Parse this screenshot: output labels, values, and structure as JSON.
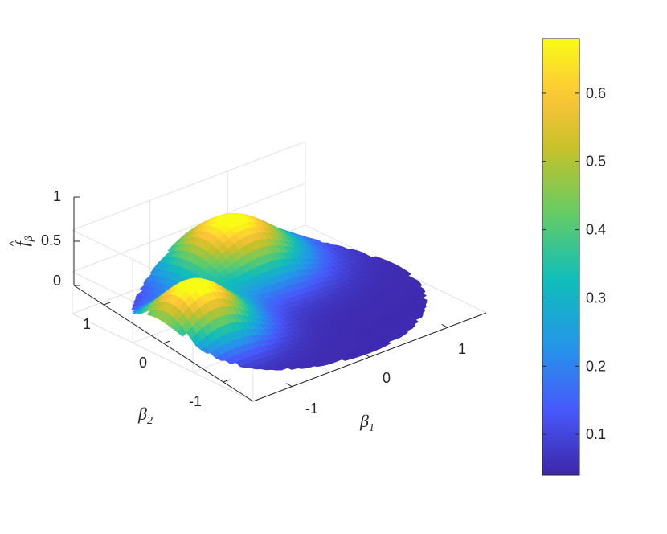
{
  "chart_data": {
    "type": "surface",
    "plot_shape": "disk",
    "view": "3d-isometric",
    "colormap": "parula",
    "grid": true,
    "xlabel": {
      "symbol": "β",
      "subscript": "1"
    },
    "ylabel": {
      "symbol": "β",
      "subscript": "2"
    },
    "zlabel": {
      "symbol": "f",
      "hat": "^",
      "subscript": "β"
    },
    "xlim": [
      -1.5,
      1.5
    ],
    "ylim": [
      -1.5,
      1.5
    ],
    "zlim": [
      0,
      1
    ],
    "xticks": [
      -1,
      0,
      1
    ],
    "yticks": [
      -1,
      0,
      1
    ],
    "zticks": [
      0,
      0.5,
      1
    ],
    "xtick_labels": [
      "-1",
      "0",
      "1"
    ],
    "ytick_labels": [
      "-1",
      "0",
      "1"
    ],
    "ztick_labels": [
      "0",
      "0.5",
      "1"
    ],
    "disk_radius": 1.5,
    "baseline": 0.05,
    "peaks": [
      {
        "beta1": -1.05,
        "beta2": 0.05,
        "height": 0.68,
        "width": 0.42
      },
      {
        "beta1": 0.2,
        "beta2": 1.05,
        "height": 0.66,
        "width": 0.5
      }
    ],
    "colorbar": {
      "location": "right",
      "range": [
        0.04,
        0.68
      ],
      "ticks": [
        0.1,
        0.2,
        0.3,
        0.4,
        0.5,
        0.6
      ],
      "tick_labels": [
        "0.1",
        "0.2",
        "0.3",
        "0.4",
        "0.5",
        "0.6"
      ]
    }
  }
}
